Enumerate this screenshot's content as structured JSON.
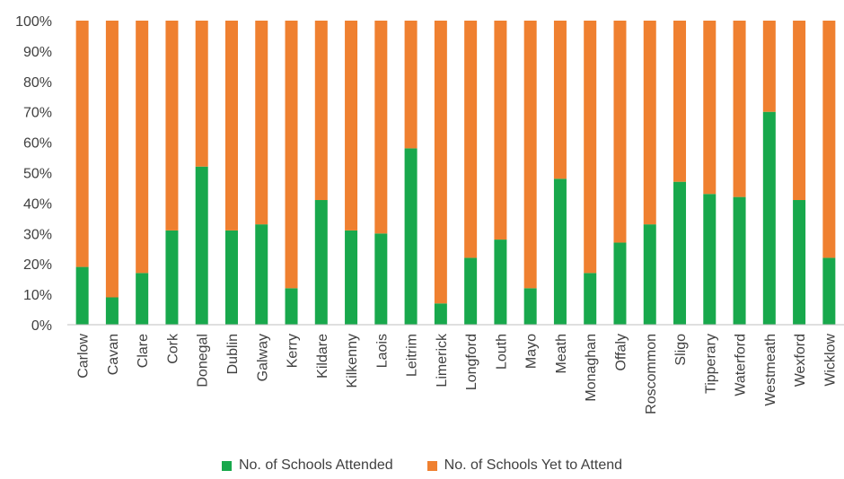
{
  "colors": {
    "attended": "#18a84c",
    "yet": "#ef8030",
    "axis": "#bfbfbf",
    "text": "#404040"
  },
  "chart_data": {
    "type": "bar",
    "stacked": true,
    "ylim": [
      0,
      100
    ],
    "yticks": [
      0,
      10,
      20,
      30,
      40,
      50,
      60,
      70,
      80,
      90,
      100
    ],
    "ytick_labels": [
      "0%",
      "10%",
      "20%",
      "30%",
      "40%",
      "50%",
      "60%",
      "70%",
      "80%",
      "90%",
      "100%"
    ],
    "categories": [
      "Carlow",
      "Cavan",
      "Clare",
      "Cork",
      "Donegal",
      "Dublin",
      "Galway",
      "Kerry",
      "Kildare",
      "Kilkenny",
      "Laois",
      "Leitrim",
      "Limerick",
      "Longford",
      "Louth",
      "Mayo",
      "Meath",
      "Monaghan",
      "Offaly",
      "Roscommon",
      "Sligo",
      "Tipperary",
      "Waterford",
      "Westmeath",
      "Wexford",
      "Wicklow"
    ],
    "series": [
      {
        "name": "No. of Schools Attended",
        "values": [
          19,
          9,
          17,
          31,
          52,
          31,
          33,
          12,
          41,
          31,
          30,
          58,
          7,
          22,
          28,
          12,
          48,
          17,
          27,
          33,
          47,
          43,
          42,
          70,
          41,
          22
        ]
      },
      {
        "name": "No. of Schools Yet to Attend",
        "values": [
          81,
          91,
          83,
          69,
          48,
          69,
          67,
          88,
          59,
          69,
          70,
          42,
          93,
          78,
          72,
          88,
          52,
          83,
          73,
          67,
          53,
          57,
          58,
          30,
          59,
          78
        ]
      }
    ],
    "legend_position": "bottom",
    "grid": false
  }
}
